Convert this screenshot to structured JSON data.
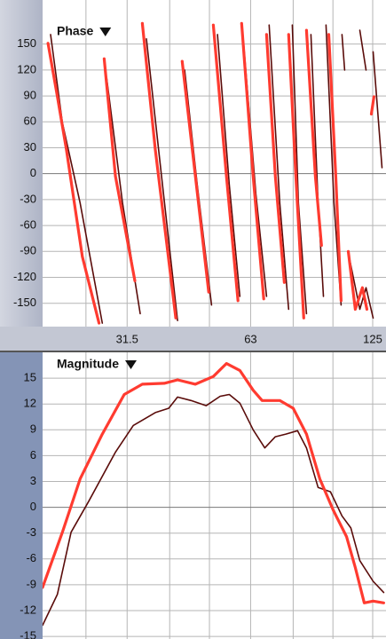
{
  "chart_data": [
    {
      "type": "line",
      "title": "Phase",
      "xscale": "log",
      "xlim": [
        19.6,
        134.7
      ],
      "xticks": [
        31.5,
        63,
        125
      ],
      "xgrid": [
        25,
        40,
        50,
        80,
        100
      ],
      "ylim": [
        -177,
        201
      ],
      "yticks": [
        150,
        120,
        90,
        60,
        30,
        0,
        -30,
        -60,
        -90,
        -120,
        -150
      ],
      "grid": true,
      "series": [
        {
          "color": "#5a0c0a",
          "x": [
            20.5,
            21.9,
            24.2,
            27.4,
            null,
            28.1,
            30.7,
            33.9,
            null,
            35.1,
            37.8,
            41.8,
            null,
            43.5,
            46.7,
            50.6,
            null,
            52.3,
            55.9,
            59.3,
            null,
            60.2,
            64.9,
            68.9,
            null,
            69.9,
            74.2,
            78.0,
            null,
            79.6,
            82.4,
            86.2,
            null,
            88.4,
            92.0,
            94.8,
            null,
            96.2,
            100.6,
            104.7,
            null,
            105.2,
            106.8,
            null,
            109.5,
            116.3,
            120.4,
            125.3,
            null,
            116.3,
            120.4,
            null,
            125.3,
            131.7
          ],
          "values": [
            161,
            59,
            -34,
            -173,
            null,
            110,
            -34,
            -162,
            null,
            156,
            17,
            -170,
            null,
            120,
            -13,
            -152,
            null,
            161,
            -13,
            -142,
            null,
            166,
            -24,
            -142,
            null,
            172,
            -34,
            -157,
            null,
            172,
            -34,
            -162,
            null,
            161,
            -34,
            -142,
            null,
            172,
            -34,
            -152,
            null,
            161,
            120,
            null,
            -96,
            -157,
            -132,
            -167,
            null,
            166,
            120,
            null,
            141,
            7
          ]
        },
        {
          "color": "#ff3b30",
          "x": [
            20.2,
            21.3,
            22.4,
            24.5,
            26.9,
            null,
            27.7,
            29.5,
            32.9,
            null,
            34.3,
            36.9,
            41.4,
            null,
            42.9,
            46.2,
            49.8,
            null,
            51.1,
            55.0,
            58.7,
            null,
            59.9,
            63.9,
            67.8,
            null,
            68.9,
            72.4,
            76.1,
            null,
            78.0,
            81.2,
            84.9,
            null,
            86.2,
            90.6,
            93.8,
            null,
            97.7,
            101.6,
            104.7,
            null,
            109.0,
            113.4,
            118.0,
            121.0,
            null,
            124.1,
            125.9
          ],
          "values": [
            151,
            89,
            28,
            -96,
            -173,
            null,
            133,
            -3,
            -124,
            null,
            174,
            28,
            -167,
            null,
            130,
            -3,
            -137,
            null,
            172,
            -3,
            -147,
            null,
            174,
            -3,
            -145,
            null,
            161,
            -3,
            -126,
            null,
            161,
            -3,
            -167,
            null,
            166,
            -3,
            -83,
            null,
            161,
            -3,
            -147,
            null,
            -90,
            -157,
            -132,
            -157,
            null,
            69,
            89
          ]
        }
      ]
    },
    {
      "type": "line",
      "title": "Magnitude",
      "xscale": "log",
      "xlim": [
        19.6,
        134.7
      ],
      "xgrid": [
        25,
        31.5,
        40,
        50,
        63,
        80,
        100,
        125
      ],
      "ylim": [
        -15.3,
        18
      ],
      "yticks": [
        15,
        12,
        9,
        6,
        3,
        0,
        -3,
        -6,
        -9,
        -12,
        -15
      ],
      "grid": true,
      "series": [
        {
          "color": "#5a0c0a",
          "x": [
            19.6,
            21.3,
            23.0,
            25.4,
            29.5,
            32.6,
            36.9,
            39.8,
            41.8,
            45.1,
            49.1,
            53.1,
            55.9,
            59.3,
            63.9,
            68.2,
            72.4,
            76.8,
            82.0,
            86.2,
            92.0,
            98.6,
            105.2,
            110.6,
            116.3,
            125.3,
            133.0
          ],
          "values": [
            -13.7,
            -10.1,
            -2.9,
            0.7,
            6.4,
            9.5,
            11.0,
            11.5,
            12.8,
            12.4,
            11.8,
            12.9,
            13.1,
            12.1,
            9.0,
            6.9,
            8.2,
            8.5,
            8.9,
            6.9,
            2.3,
            1.8,
            -1.0,
            -2.4,
            -6.2,
            -8.6,
            -9.9
          ]
        },
        {
          "color": "#ff3b30",
          "x": [
            19.6,
            21.9,
            24.2,
            27.4,
            31.0,
            34.3,
            38.8,
            41.8,
            46.2,
            51.1,
            55.0,
            59.3,
            63.9,
            67.2,
            74.2,
            80.0,
            86.2,
            92.9,
            100.1,
            107.9,
            113.4,
            119.2,
            125.3,
            133.0
          ],
          "values": [
            -9.3,
            -2.9,
            3.3,
            8.5,
            13.1,
            14.3,
            14.4,
            14.8,
            14.3,
            15.2,
            16.7,
            15.9,
            13.6,
            12.4,
            12.4,
            11.5,
            8.5,
            3.3,
            -0.3,
            -3.4,
            -7.0,
            -11.1,
            -10.9,
            -11.1
          ]
        }
      ]
    }
  ]
}
